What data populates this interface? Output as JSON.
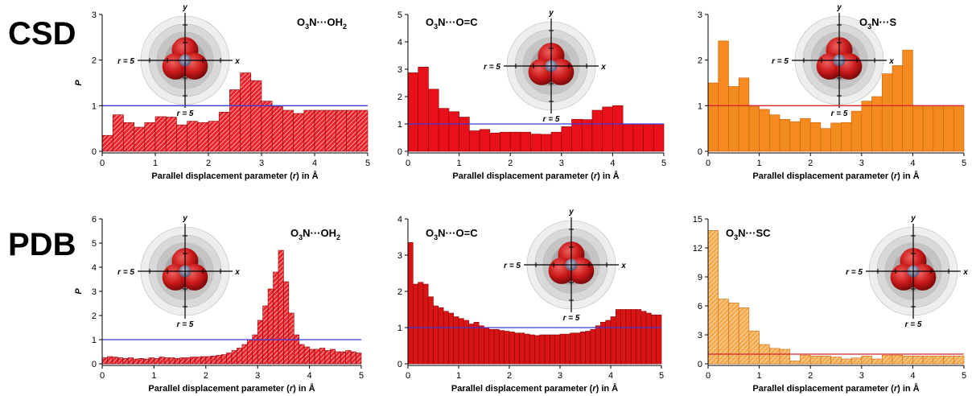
{
  "row_labels": [
    "CSD",
    "PDB"
  ],
  "mol_labels": {
    "r_left": "r = 5",
    "r_bottom": "r = 5",
    "x": "x",
    "y": "y"
  },
  "chart_data": [
    {
      "type": "bar",
      "row": "CSD",
      "title_parts": [
        "O",
        "3",
        "N···OH",
        "2",
        ""
      ],
      "xlabel": "Parallel displacement parameter (r) in Å",
      "ylabel": "P",
      "xlim": [
        0,
        5
      ],
      "ylim": [
        0,
        3
      ],
      "yticks": [
        0,
        1,
        2,
        3
      ],
      "xticks": [
        0,
        1,
        2,
        3,
        4,
        5
      ],
      "bar_width": 0.2,
      "bar_color": "#e8232b",
      "hatched": true,
      "reference_line": {
        "y": 1,
        "color": "#3b3bd6"
      },
      "x": [
        0.1,
        0.3,
        0.5,
        0.7,
        0.9,
        1.1,
        1.3,
        1.5,
        1.7,
        1.9,
        2.1,
        2.3,
        2.5,
        2.7,
        2.9,
        3.1,
        3.3,
        3.5,
        3.7,
        3.9,
        4.1,
        4.3,
        4.5,
        4.7,
        4.9
      ],
      "values": [
        0.35,
        0.8,
        0.63,
        0.53,
        0.63,
        0.76,
        0.75,
        0.58,
        0.66,
        0.63,
        0.66,
        0.86,
        1.35,
        1.72,
        1.55,
        1.1,
        0.98,
        0.9,
        0.83,
        0.9,
        0.9,
        0.9,
        0.9,
        0.9,
        0.9
      ]
    },
    {
      "type": "bar",
      "row": "CSD",
      "title_parts": [
        "O",
        "3",
        "N···O=C",
        "",
        ""
      ],
      "xlabel": "Parallel displacement parameter (r) in Å",
      "ylabel": "",
      "xlim": [
        0,
        5
      ],
      "ylim": [
        0,
        5
      ],
      "yticks": [
        0,
        1,
        2,
        3,
        4,
        5
      ],
      "xticks": [
        0,
        1,
        2,
        3,
        4,
        5
      ],
      "bar_width": 0.2,
      "bar_color": "#e8101a",
      "hatched": false,
      "reference_line": {
        "y": 1,
        "color": "#3b3bd6"
      },
      "x": [
        0.1,
        0.3,
        0.5,
        0.7,
        0.9,
        1.1,
        1.3,
        1.5,
        1.7,
        1.9,
        2.1,
        2.3,
        2.5,
        2.7,
        2.9,
        3.1,
        3.3,
        3.5,
        3.7,
        3.9,
        4.1,
        4.3,
        4.5,
        4.7,
        4.9
      ],
      "values": [
        2.87,
        3.08,
        2.27,
        1.57,
        1.45,
        1.25,
        0.75,
        0.8,
        0.67,
        0.7,
        0.7,
        0.7,
        0.63,
        0.62,
        0.7,
        0.9,
        1.17,
        1.16,
        1.5,
        1.62,
        1.67,
        1.0,
        1.0,
        1.0,
        1.0
      ]
    },
    {
      "type": "bar",
      "row": "CSD",
      "title_parts": [
        "O",
        "3",
        "N···S",
        "",
        ""
      ],
      "xlabel": "Parallel displacement parameter (r) in Å",
      "ylabel": "",
      "xlim": [
        0,
        5
      ],
      "ylim": [
        0,
        3
      ],
      "yticks": [
        0,
        1,
        2,
        3
      ],
      "xticks": [
        0,
        1,
        2,
        3,
        4,
        5
      ],
      "bar_width": 0.2,
      "bar_color": "#f58a1f",
      "hatched": false,
      "reference_line": {
        "y": 1,
        "color": "#d9262b"
      },
      "x": [
        0.1,
        0.3,
        0.5,
        0.7,
        0.9,
        1.1,
        1.3,
        1.5,
        1.7,
        1.9,
        2.1,
        2.3,
        2.5,
        2.7,
        2.9,
        3.1,
        3.3,
        3.5,
        3.7,
        3.9,
        4.1,
        4.3,
        4.5,
        4.7,
        4.9
      ],
      "values": [
        1.5,
        2.42,
        1.42,
        1.61,
        0.98,
        0.92,
        0.8,
        0.7,
        0.65,
        0.72,
        0.63,
        0.5,
        0.62,
        0.63,
        0.88,
        1.1,
        1.2,
        1.7,
        1.88,
        2.22,
        1.0,
        1.0,
        1.0,
        1.0,
        1.0
      ]
    },
    {
      "type": "bar",
      "row": "PDB",
      "title_parts": [
        "O",
        "3",
        "N···OH",
        "2",
        ""
      ],
      "xlabel": "Parallel displacement parameter (r) in Å",
      "ylabel": "P",
      "xlim": [
        0,
        5
      ],
      "ylim": [
        0,
        6
      ],
      "yticks": [
        0,
        1,
        2,
        3,
        4,
        5,
        6
      ],
      "xticks": [
        0,
        1,
        2,
        3,
        4,
        5
      ],
      "bar_width": 0.1,
      "bar_color": "#e8232b",
      "hatched": true,
      "reference_line": {
        "y": 1,
        "color": "#3b3bd6"
      },
      "x": [
        0.05,
        0.15,
        0.25,
        0.35,
        0.45,
        0.55,
        0.65,
        0.75,
        0.85,
        0.95,
        1.05,
        1.15,
        1.25,
        1.35,
        1.45,
        1.55,
        1.65,
        1.75,
        1.85,
        1.95,
        2.05,
        2.15,
        2.25,
        2.35,
        2.45,
        2.55,
        2.65,
        2.75,
        2.85,
        2.95,
        3.05,
        3.15,
        3.25,
        3.35,
        3.45,
        3.55,
        3.65,
        3.75,
        3.85,
        3.95,
        4.05,
        4.15,
        4.25,
        4.35,
        4.45,
        4.55,
        4.65,
        4.75,
        4.85,
        4.95
      ],
      "values": [
        0.25,
        0.3,
        0.28,
        0.25,
        0.22,
        0.25,
        0.2,
        0.22,
        0.2,
        0.25,
        0.22,
        0.28,
        0.25,
        0.25,
        0.22,
        0.25,
        0.25,
        0.28,
        0.28,
        0.3,
        0.3,
        0.32,
        0.35,
        0.38,
        0.45,
        0.55,
        0.65,
        0.8,
        1.0,
        1.2,
        1.8,
        2.4,
        3.1,
        3.8,
        4.7,
        3.4,
        2.1,
        1.2,
        0.8,
        0.7,
        0.6,
        0.6,
        0.65,
        0.55,
        0.6,
        0.5,
        0.5,
        0.55,
        0.5,
        0.45
      ]
    },
    {
      "type": "bar",
      "row": "PDB",
      "title_parts": [
        "O",
        "3",
        "N···O=C",
        "",
        ""
      ],
      "xlabel": "Parallel displacement parameter (r) in Å",
      "ylabel": "",
      "xlim": [
        0,
        5
      ],
      "ylim": [
        0,
        4
      ],
      "yticks": [
        0,
        1,
        2,
        3,
        4
      ],
      "xticks": [
        0,
        1,
        2,
        3,
        4,
        5
      ],
      "bar_width": 0.1,
      "bar_color": "#d81414",
      "hatched": false,
      "reference_line": {
        "y": 1,
        "color": "#3b3bd6"
      },
      "x": [
        0.05,
        0.15,
        0.25,
        0.35,
        0.45,
        0.55,
        0.65,
        0.75,
        0.85,
        0.95,
        1.05,
        1.15,
        1.25,
        1.35,
        1.45,
        1.55,
        1.65,
        1.75,
        1.85,
        1.95,
        2.05,
        2.15,
        2.25,
        2.35,
        2.45,
        2.55,
        2.65,
        2.75,
        2.85,
        2.95,
        3.05,
        3.15,
        3.25,
        3.35,
        3.45,
        3.55,
        3.65,
        3.75,
        3.85,
        3.95,
        4.05,
        4.15,
        4.25,
        4.35,
        4.45,
        4.55,
        4.65,
        4.75,
        4.85,
        4.95
      ],
      "values": [
        3.35,
        2.2,
        2.25,
        2.2,
        1.85,
        1.6,
        1.55,
        1.45,
        1.4,
        1.3,
        1.25,
        1.2,
        1.1,
        1.15,
        1.05,
        1.0,
        0.95,
        0.95,
        0.92,
        0.9,
        0.88,
        0.85,
        0.85,
        0.82,
        0.8,
        0.78,
        0.8,
        0.8,
        0.8,
        0.8,
        0.82,
        0.82,
        0.85,
        0.85,
        0.88,
        0.9,
        0.95,
        1.05,
        1.15,
        1.2,
        1.3,
        1.5,
        1.5,
        1.5,
        1.5,
        1.5,
        1.45,
        1.4,
        1.35,
        1.35
      ]
    },
    {
      "type": "bar",
      "row": "PDB",
      "title_parts": [
        "O",
        "3",
        "N···SC",
        "",
        ""
      ],
      "xlabel": "Parallel displacement parameter (r) in Å",
      "ylabel": "",
      "xlim": [
        0,
        5
      ],
      "ylim": [
        0,
        15
      ],
      "yticks": [
        0,
        3,
        6,
        9,
        12,
        15
      ],
      "xticks": [
        0,
        1,
        2,
        3,
        4,
        5
      ],
      "bar_width": 0.2,
      "bar_color": "#f5a94a",
      "hatched": true,
      "reference_line": {
        "y": 1,
        "color": "#d9262b"
      },
      "x": [
        0.1,
        0.3,
        0.5,
        0.7,
        0.9,
        1.1,
        1.3,
        1.5,
        1.7,
        1.9,
        2.1,
        2.3,
        2.5,
        2.7,
        2.9,
        3.1,
        3.3,
        3.5,
        3.7,
        3.9,
        4.1,
        4.3,
        4.5,
        4.7,
        4.9
      ],
      "values": [
        13.8,
        6.7,
        6.3,
        5.8,
        3.4,
        2.0,
        1.6,
        1.5,
        0.3,
        0.9,
        0.8,
        0.8,
        0.7,
        0.5,
        0.6,
        0.8,
        0.5,
        0.9,
        0.9,
        0.8,
        0.8,
        0.8,
        0.8,
        0.8,
        0.8
      ]
    }
  ]
}
